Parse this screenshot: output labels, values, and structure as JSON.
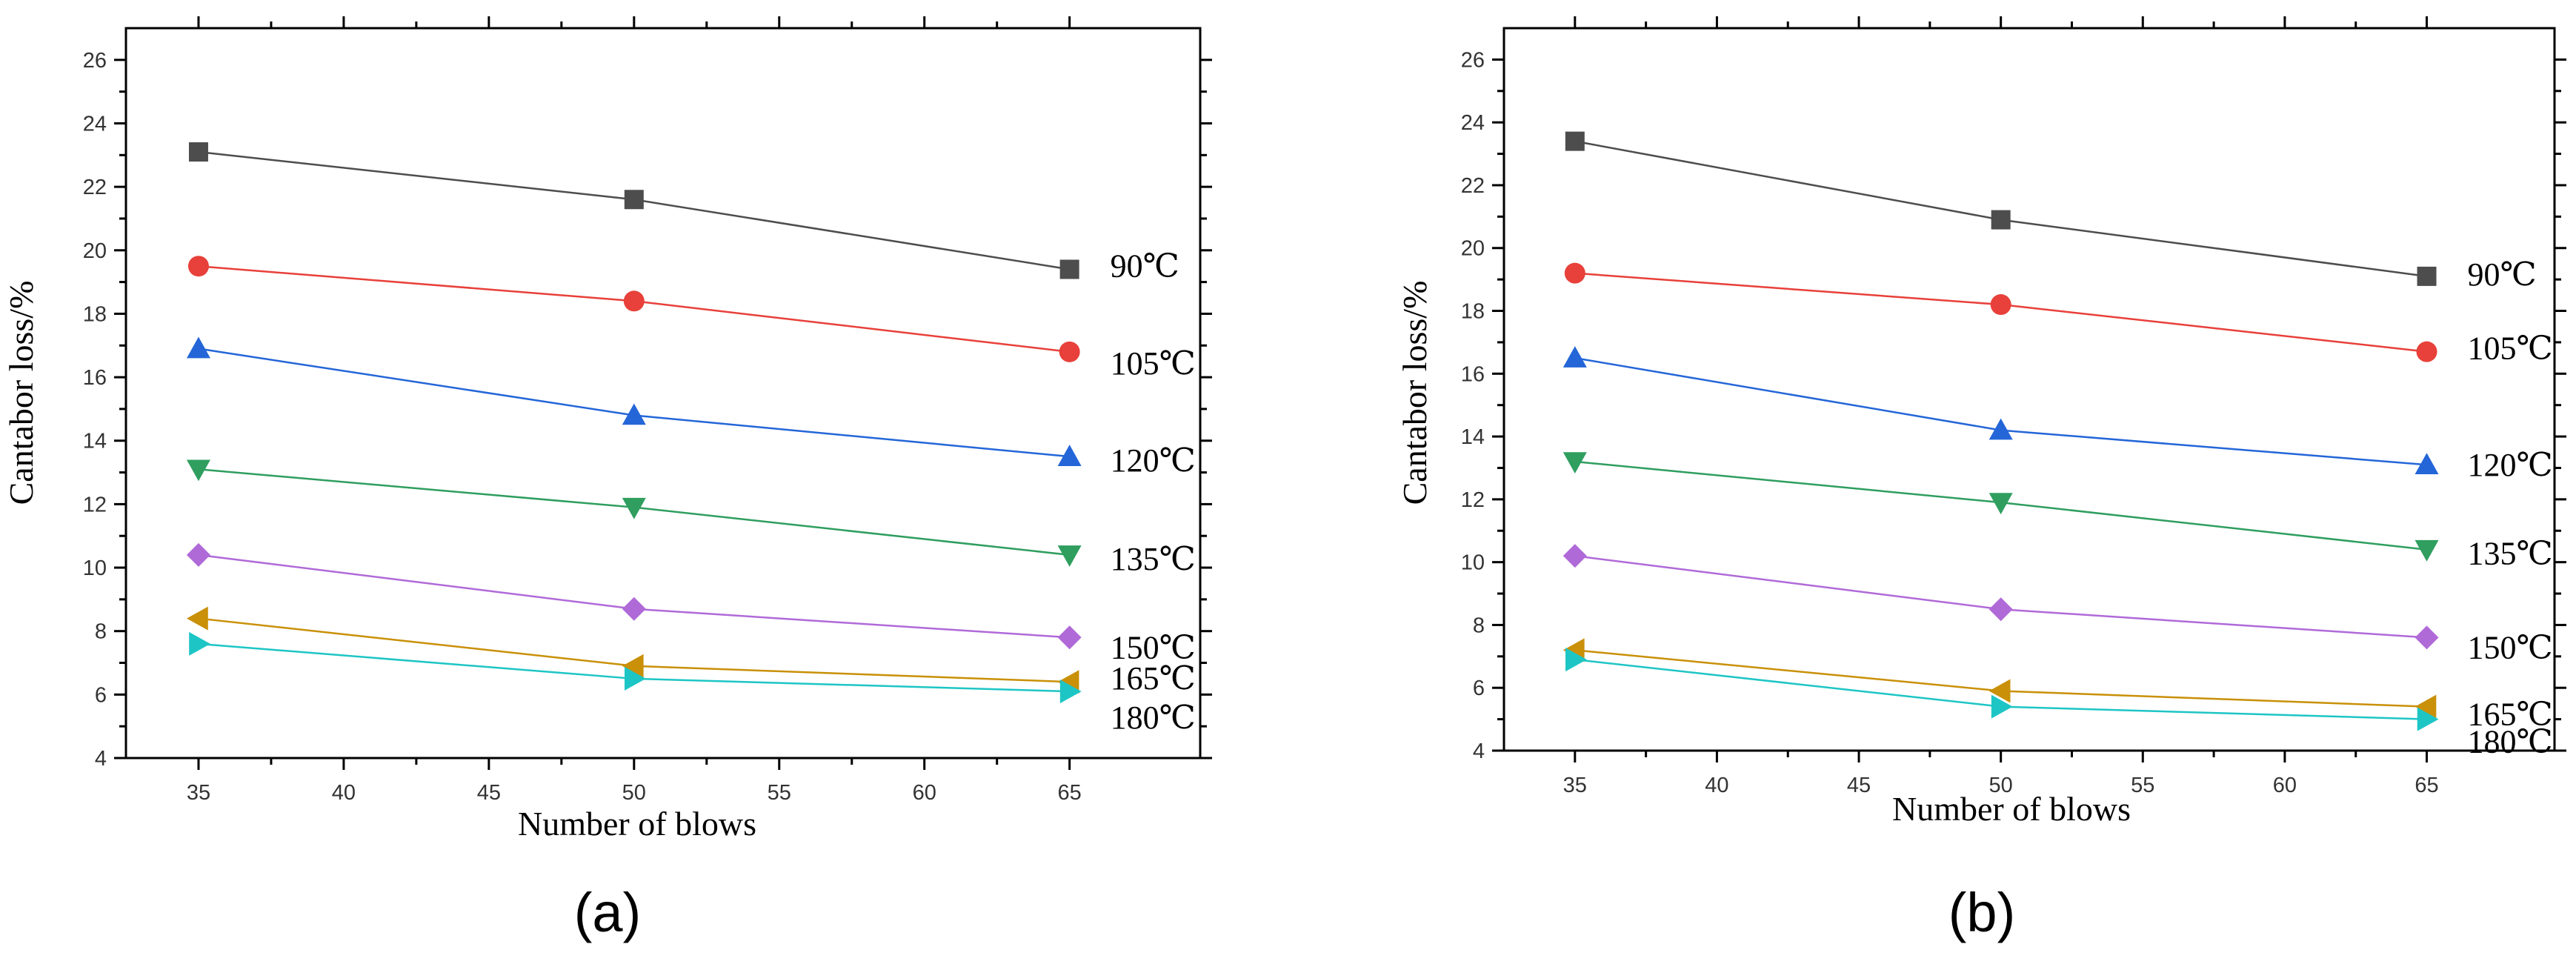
{
  "chart_data": [
    {
      "type": "line",
      "panel": "(a)",
      "xlabel": "Number of  blows",
      "ylabel": "Cantabor loss/%",
      "xlim": [
        32.5,
        69.5
      ],
      "ylim": [
        4,
        27
      ],
      "xticks": [
        35,
        40,
        45,
        50,
        55,
        60,
        65
      ],
      "yticks": [
        4,
        6,
        8,
        10,
        12,
        14,
        16,
        18,
        20,
        22,
        24,
        26
      ],
      "x": [
        35,
        50,
        65
      ],
      "series": [
        {
          "name": "90℃",
          "label": "90℃",
          "color": "#4d4d4d",
          "marker": "square",
          "values": [
            23.1,
            21.6,
            19.4
          ]
        },
        {
          "name": "105℃",
          "label": "105℃",
          "color": "#e8403a",
          "marker": "circle",
          "values": [
            19.5,
            18.4,
            16.8
          ]
        },
        {
          "name": "120℃",
          "label": "120℃",
          "color": "#2466d8",
          "marker": "triangle-up",
          "values": [
            16.9,
            14.8,
            13.5
          ]
        },
        {
          "name": "135℃",
          "label": "135℃",
          "color": "#2f9e5f",
          "marker": "triangle-down",
          "values": [
            13.1,
            11.9,
            10.4
          ]
        },
        {
          "name": "150℃",
          "label": "150℃",
          "color": "#b06ad8",
          "marker": "diamond",
          "values": [
            10.4,
            8.7,
            7.8
          ]
        },
        {
          "name": "165℃",
          "label": "165℃",
          "color": "#c99008",
          "marker": "triangle-left",
          "values": [
            8.4,
            6.9,
            6.4
          ]
        },
        {
          "name": "180℃",
          "label": "180℃",
          "color": "#1ec5c5",
          "marker": "triangle-right",
          "values": [
            7.6,
            6.5,
            6.1
          ]
        }
      ]
    },
    {
      "type": "line",
      "panel": "(b)",
      "xlabel": "Number of  blows",
      "ylabel": "Cantabor loss/%",
      "xlim": [
        32.5,
        69.5
      ],
      "ylim": [
        4,
        27
      ],
      "xticks": [
        35,
        40,
        45,
        50,
        55,
        60,
        65
      ],
      "yticks": [
        4,
        6,
        8,
        10,
        12,
        14,
        16,
        18,
        20,
        22,
        24,
        26
      ],
      "x": [
        35,
        50,
        65
      ],
      "series": [
        {
          "name": "90℃",
          "label": "90℃",
          "color": "#4d4d4d",
          "marker": "square",
          "values": [
            23.4,
            20.9,
            19.1
          ]
        },
        {
          "name": "105℃",
          "label": "105℃",
          "color": "#e8403a",
          "marker": "circle",
          "values": [
            19.2,
            18.2,
            16.7
          ]
        },
        {
          "name": "120℃",
          "label": "120℃",
          "color": "#2466d8",
          "marker": "triangle-up",
          "values": [
            16.5,
            14.2,
            13.1
          ]
        },
        {
          "name": "135℃",
          "label": "135℃",
          "color": "#2f9e5f",
          "marker": "triangle-down",
          "values": [
            13.2,
            11.9,
            10.4
          ]
        },
        {
          "name": "150℃",
          "label": "150℃",
          "color": "#b06ad8",
          "marker": "diamond",
          "values": [
            10.2,
            8.5,
            7.6
          ]
        },
        {
          "name": "165℃",
          "label": "165℃",
          "color": "#c99008",
          "marker": "triangle-left",
          "values": [
            7.2,
            5.9,
            5.4
          ]
        },
        {
          "name": "180℃",
          "label": "180℃",
          "color": "#1ec5c5",
          "marker": "triangle-right",
          "values": [
            6.9,
            5.4,
            5.0
          ]
        }
      ]
    }
  ]
}
